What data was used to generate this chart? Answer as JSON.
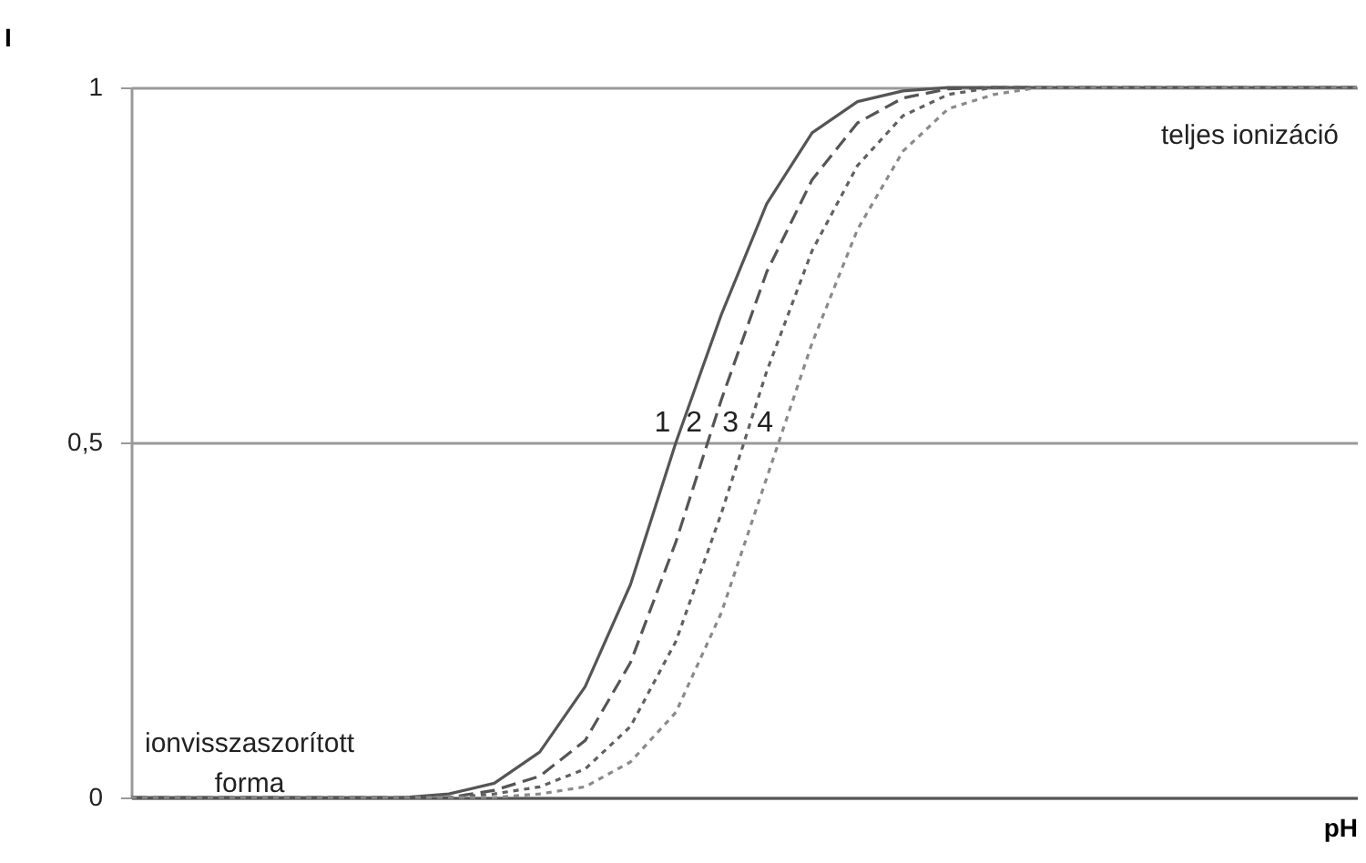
{
  "chart_data": {
    "type": "line",
    "xlabel": "pH",
    "ylabel": "I",
    "categories": [
      null,
      null,
      null,
      null,
      null,
      null,
      null,
      null,
      null,
      null,
      null,
      null,
      null,
      null,
      null,
      null,
      null,
      null,
      null,
      null,
      null,
      null,
      null,
      null,
      null,
      null,
      null,
      null
    ],
    "series": [
      {
        "name": "1",
        "color": "#555555",
        "line_style": "solid",
        "values": [
          0,
          0,
          0,
          0,
          0,
          0,
          0,
          0.005,
          0.02,
          0.064,
          0.156,
          0.3,
          0.5,
          0.68,
          0.836,
          0.936,
          0.98,
          0.995,
          1,
          1,
          1,
          1,
          1,
          1,
          1,
          1,
          1,
          1
        ]
      },
      {
        "name": "2",
        "color": "#555555",
        "line_style": "dashed",
        "values": [
          0,
          0,
          0,
          0,
          0,
          0,
          0,
          0,
          0.01,
          0.03,
          0.08,
          0.19,
          0.36,
          0.56,
          0.74,
          0.87,
          0.95,
          0.985,
          0.998,
          1,
          1,
          1,
          1,
          1,
          1,
          1,
          1,
          1
        ]
      },
      {
        "name": "3",
        "color": "#606060",
        "line_style": "dotted",
        "values": [
          0,
          0,
          0,
          0,
          0,
          0,
          0,
          0,
          0.005,
          0.015,
          0.04,
          0.1,
          0.22,
          0.4,
          0.6,
          0.77,
          0.89,
          0.96,
          0.99,
          1,
          1,
          1,
          1,
          1,
          1,
          1,
          1,
          1
        ]
      },
      {
        "name": "4",
        "color": "#8a8a8a",
        "line_style": "dotted",
        "values": [
          0,
          0,
          0,
          0,
          0,
          0,
          0,
          0,
          0,
          0.005,
          0.015,
          0.05,
          0.12,
          0.26,
          0.45,
          0.64,
          0.8,
          0.91,
          0.97,
          0.99,
          1,
          1,
          1,
          1,
          1,
          1,
          1,
          1
        ]
      }
    ],
    "ylim": [
      0,
      1
    ],
    "yticks": [
      0,
      {
        "value": 0.5,
        "label": "0,5"
      },
      1
    ],
    "grid": "y",
    "tick_labels": "y",
    "annotations": [
      "teljes ionizáció",
      "ionvisszaszorított forma"
    ]
  }
}
